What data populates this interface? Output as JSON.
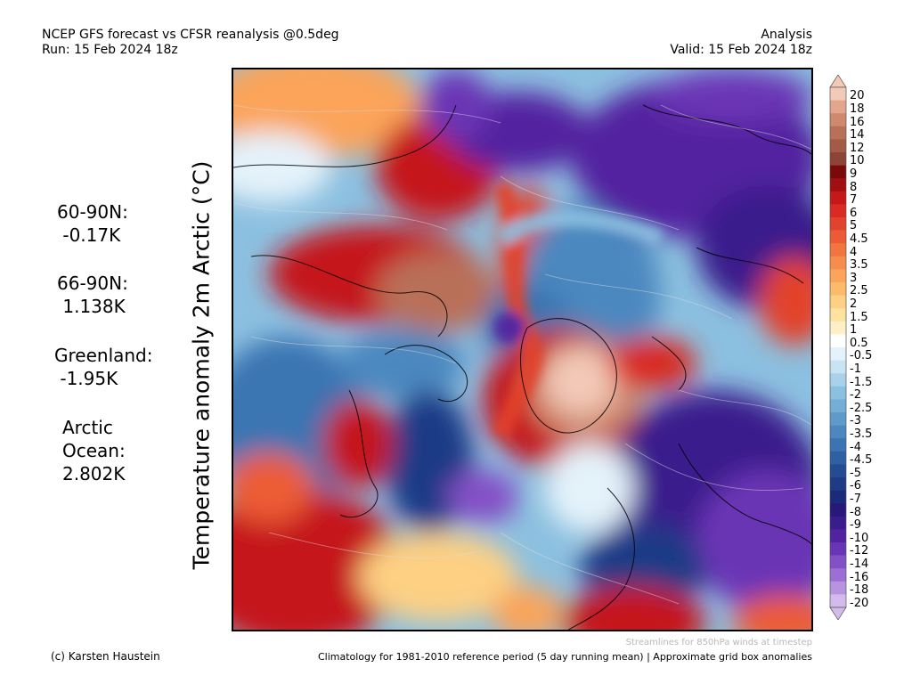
{
  "header": {
    "title": "NCEP GFS forecast vs CFSR reanalysis @0.5deg",
    "run": "Run: 15 Feb 2024 18z",
    "type": "Analysis",
    "valid": "Valid: 15 Feb 2024 18z"
  },
  "ylabel": "Temperature anomaly 2m Arctic (°C)",
  "stats": [
    {
      "label": "60-90N:",
      "value": "-0.17K"
    },
    {
      "label": "66-90N:",
      "value": "1.138K"
    },
    {
      "label": "Greenland:",
      "value": "-1.95K"
    },
    {
      "label": "Arctic\nOcean:",
      "value": "2.802K"
    }
  ],
  "colorbar": {
    "labels": [
      "20",
      "18",
      "16",
      "14",
      "12",
      "10",
      "9",
      "8",
      "7",
      "6",
      "5",
      "4.5",
      "4",
      "3.5",
      "3",
      "2.5",
      "2",
      "1.5",
      "1",
      "0.5",
      "-0.5",
      "-1",
      "-1.5",
      "-2",
      "-2.5",
      "-3",
      "-3.5",
      "-4",
      "-4.5",
      "-5",
      "-6",
      "-7",
      "-8",
      "-9",
      "-10",
      "-12",
      "-14",
      "-16",
      "-18",
      "-20"
    ],
    "colors": [
      "#f3c9b8",
      "#e3a68d",
      "#cf8a6e",
      "#b97058",
      "#a35b46",
      "#8d4436",
      "#7a0a0a",
      "#a00f12",
      "#c5181b",
      "#d92a23",
      "#e2432c",
      "#ec5b36",
      "#f27440",
      "#f78c4c",
      "#fba45a",
      "#fcba6b",
      "#fdd083",
      "#fee2a0",
      "#fff0c8",
      "#ffffff",
      "#e4f2fa",
      "#c8e3f2",
      "#a9d2ea",
      "#8cc0e0",
      "#74aed6",
      "#5e9bcb",
      "#4c88bf",
      "#3b74b2",
      "#2e60a3",
      "#234c93",
      "#1f3a86",
      "#1c2a7a",
      "#28187a",
      "#3a1d8c",
      "#5223a0",
      "#6a35b5",
      "#8450c6",
      "#9d6fd4",
      "#b793e0",
      "#d3bcec"
    ]
  },
  "regions": {
    "land_warm_west_asia": "warm",
    "north_america": "cold",
    "europe_scandinavia": "cold",
    "greenland_north": "warm"
  },
  "footer": {
    "credit": "(c) Karsten Haustein",
    "streamlines": "Streamlines for 850hPa winds at timestep",
    "climatology": "Climatology for 1981-2010 reference period (5 day running mean) | Approximate grid box anomalies"
  }
}
